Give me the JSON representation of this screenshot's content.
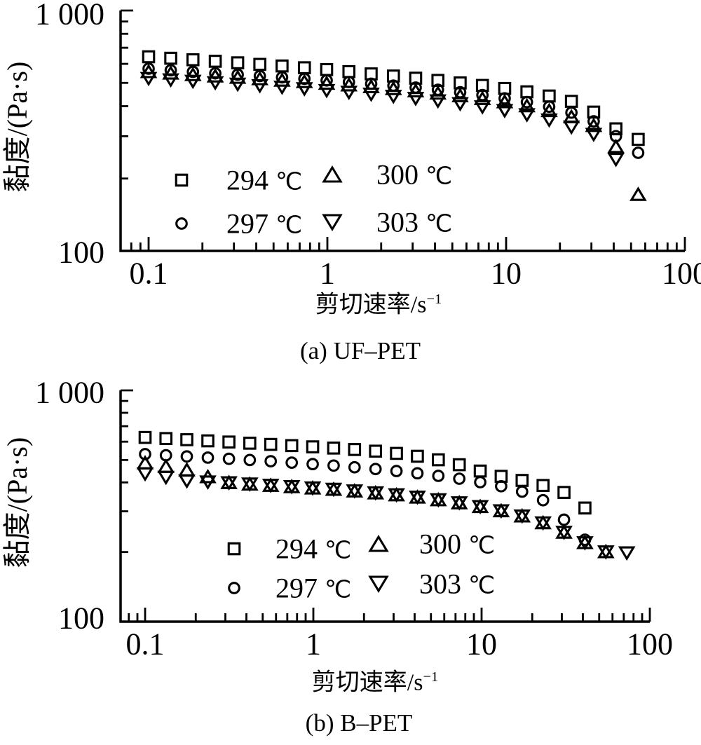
{
  "figure": {
    "background": "#ffffff",
    "ink": "#000000"
  },
  "chart_data": [
    {
      "id": "a",
      "type": "scatter",
      "caption": "(a) UF–PET",
      "xlabel_base": "剪切速率/s",
      "xlabel_exp": "−1",
      "ylabel": "黏度/(Pa·s)",
      "x_scale": "log",
      "y_scale": "log",
      "xlim": [
        0.07,
        100
      ],
      "ylim": [
        100,
        1000
      ],
      "x_tick_values": [
        0.1,
        1,
        10,
        100
      ],
      "x_tick_labels": [
        "0.1",
        "1",
        "10",
        "100"
      ],
      "y_tick_values": [
        100,
        1000
      ],
      "y_tick_labels": [
        "100",
        "1 000"
      ],
      "legend": [
        {
          "label": "294 ℃",
          "marker": "square"
        },
        {
          "label": "297 ℃",
          "marker": "circle"
        },
        {
          "label": "300 ℃",
          "marker": "triangle-up"
        },
        {
          "label": "303 ℃",
          "marker": "triangle-down"
        }
      ],
      "series": [
        {
          "name": "294 ℃",
          "marker": "square",
          "x": [
            0.1,
            0.133,
            0.177,
            0.236,
            0.315,
            0.419,
            0.558,
            0.744,
            0.991,
            1.32,
            1.758,
            2.342,
            3.119,
            4.154,
            5.533,
            7.37,
            9.816,
            13.07,
            17.41,
            23.19,
            30.89,
            41.14,
            54.8
          ],
          "y": [
            642,
            633,
            624,
            615,
            606,
            597,
            588,
            578,
            568,
            557,
            545,
            534,
            523,
            512,
            500,
            488,
            474,
            459,
            441,
            419,
            378,
            322,
            291
          ]
        },
        {
          "name": "297 ℃",
          "marker": "circle",
          "x": [
            0.1,
            0.133,
            0.177,
            0.236,
            0.315,
            0.419,
            0.558,
            0.744,
            0.991,
            1.32,
            1.758,
            2.342,
            3.119,
            4.154,
            5.533,
            7.37,
            9.816,
            13.07,
            17.41,
            23.19,
            30.89,
            41.14,
            54.8
          ],
          "y": [
            573,
            564,
            556,
            548,
            541,
            534,
            527,
            520,
            512,
            504,
            496,
            487,
            478,
            468,
            457,
            445,
            431,
            416,
            398,
            376,
            346,
            300,
            256
          ]
        },
        {
          "name": "300 ℃",
          "marker": "triangle-up",
          "x": [
            0.1,
            0.133,
            0.177,
            0.236,
            0.315,
            0.419,
            0.558,
            0.744,
            0.991,
            1.32,
            1.758,
            2.342,
            3.119,
            4.154,
            5.533,
            7.37,
            9.816,
            13.07,
            17.41,
            23.19,
            30.89,
            41.14,
            54.8
          ],
          "y": [
            558,
            550,
            542,
            535,
            528,
            521,
            514,
            507,
            499,
            491,
            483,
            474,
            464,
            454,
            443,
            431,
            418,
            402,
            384,
            362,
            333,
            272,
            172
          ]
        },
        {
          "name": "303 ℃",
          "marker": "triangle-down",
          "x": [
            0.1,
            0.133,
            0.177,
            0.236,
            0.315,
            0.419,
            0.558,
            0.744,
            0.991,
            1.32,
            1.758,
            2.342,
            3.119,
            4.154,
            5.533,
            7.37,
            9.816,
            13.07,
            17.41,
            23.19,
            30.89,
            41.14
          ],
          "y": [
            521,
            514,
            507,
            500,
            493,
            486,
            479,
            472,
            464,
            456,
            448,
            439,
            430,
            420,
            409,
            397,
            383,
            368,
            350,
            327,
            305,
            240
          ]
        }
      ]
    },
    {
      "id": "b",
      "type": "scatter",
      "caption": "(b) B–PET",
      "xlabel_base": "剪切速率/s",
      "xlabel_exp": "−1",
      "ylabel": "黏度/(Pa·s)",
      "x_scale": "log",
      "y_scale": "log",
      "xlim": [
        0.07,
        100
      ],
      "ylim": [
        100,
        1000
      ],
      "x_tick_values": [
        0.1,
        1,
        10,
        100
      ],
      "x_tick_labels": [
        "0.1",
        "1",
        "10",
        "100"
      ],
      "y_tick_values": [
        100,
        1000
      ],
      "y_tick_labels": [
        "100",
        "1 000"
      ],
      "legend": [
        {
          "label": "294 ℃",
          "marker": "square"
        },
        {
          "label": "297 ℃",
          "marker": "circle"
        },
        {
          "label": "300 ℃",
          "marker": "triangle-up"
        },
        {
          "label": "303 ℃",
          "marker": "triangle-down"
        }
      ],
      "series": [
        {
          "name": "294 ℃",
          "marker": "square",
          "x": [
            0.1,
            0.133,
            0.177,
            0.236,
            0.315,
            0.419,
            0.558,
            0.744,
            0.991,
            1.32,
            1.758,
            2.342,
            3.119,
            4.154,
            5.533,
            7.37,
            9.816,
            13.07,
            17.41,
            23.19,
            30.89,
            41.14
          ],
          "y": [
            626,
            619,
            612,
            605,
            598,
            591,
            584,
            577,
            570,
            563,
            555,
            546,
            534,
            519,
            501,
            477,
            448,
            425,
            408,
            388,
            362,
            310
          ]
        },
        {
          "name": "297 ℃",
          "marker": "circle",
          "x": [
            0.1,
            0.133,
            0.177,
            0.236,
            0.315,
            0.419,
            0.558,
            0.744,
            0.991,
            1.32,
            1.758,
            2.342,
            3.119,
            4.154,
            5.533,
            7.37,
            9.816,
            13.07,
            17.41,
            23.19,
            30.89,
            41.14
          ],
          "y": [
            530,
            524,
            518,
            512,
            506,
            500,
            494,
            487,
            480,
            473,
            465,
            457,
            448,
            438,
            427,
            415,
            401,
            385,
            365,
            335,
            276,
            226
          ]
        },
        {
          "name": "300 ℃",
          "marker": "triangle-up",
          "x": [
            0.1,
            0.133,
            0.177,
            0.236,
            0.315,
            0.419,
            0.558,
            0.744,
            0.991,
            1.32,
            1.758,
            2.342,
            3.119,
            4.154,
            5.533,
            7.37,
            9.816,
            13.07,
            17.41,
            23.19,
            30.89,
            41.14,
            54.8
          ],
          "y": [
            487,
            470,
            454,
            424,
            400,
            394,
            389,
            384,
            379,
            374,
            368,
            361,
            354,
            346,
            337,
            327,
            315,
            302,
            287,
            268,
            244,
            220,
            201
          ]
        },
        {
          "name": "303 ℃",
          "marker": "triangle-down",
          "x": [
            0.1,
            0.133,
            0.177,
            0.236,
            0.315,
            0.419,
            0.558,
            0.744,
            0.991,
            1.32,
            1.758,
            2.342,
            3.119,
            4.154,
            5.533,
            7.37,
            9.816,
            13.07,
            17.41,
            23.19,
            30.89,
            41.14,
            54.8,
            72.99
          ],
          "y": [
            435,
            420,
            405,
            401,
            398,
            393,
            388,
            383,
            378,
            373,
            367,
            360,
            353,
            345,
            336,
            326,
            314,
            301,
            286,
            267,
            243,
            219,
            200,
            198
          ]
        }
      ]
    }
  ]
}
